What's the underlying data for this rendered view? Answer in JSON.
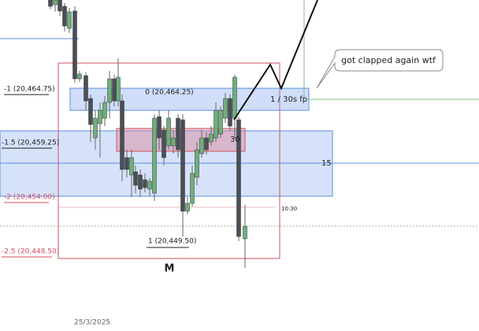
{
  "fib_labels": [
    "-1 (20,464.75)",
    "0 (20,464.25)",
    "-1.5 (20,459.25)",
    "-2 (20,454.00)",
    "1 (20,449.50)",
    "-2.5 (20,448.50)"
  ],
  "annotations": {
    "zone_label": "1 / 30s fp",
    "line_label": "15",
    "small_label": "30",
    "time_marker": "10:30",
    "pattern": "M",
    "callout": "got clapped again wtf"
  },
  "date_label": "25/3/2025"
}
